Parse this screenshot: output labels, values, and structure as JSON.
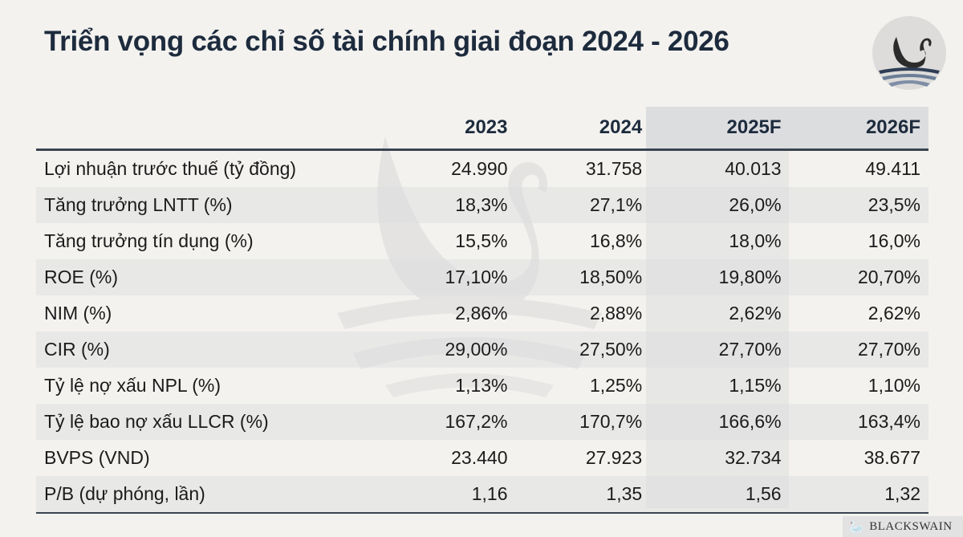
{
  "title": "Triển vọng các chỉ số tài chính giai đoạn 2024 - 2026",
  "table": {
    "headers": [
      "",
      "2023",
      "2024",
      "2025F",
      "2026F"
    ],
    "rows": [
      {
        "label": "Lợi nhuận trước thuế (tỷ đồng)",
        "values": [
          "24.990",
          "31.758",
          "40.013",
          "49.411"
        ]
      },
      {
        "label": "Tăng trưởng LNTT (%)",
        "values": [
          "18,3%",
          "27,1%",
          "26,0%",
          "23,5%"
        ]
      },
      {
        "label": "Tăng trưởng tín dụng (%)",
        "values": [
          "15,5%",
          "16,8%",
          "18,0%",
          "16,0%"
        ]
      },
      {
        "label": "ROE (%)",
        "values": [
          "17,10%",
          "18,50%",
          "19,80%",
          "20,70%"
        ]
      },
      {
        "label": "NIM (%)",
        "values": [
          "2,86%",
          "2,88%",
          "2,62%",
          "2,62%"
        ]
      },
      {
        "label": "CIR (%)",
        "values": [
          "29,00%",
          "27,50%",
          "27,70%",
          "27,70%"
        ]
      },
      {
        "label": "Tỷ lệ nợ xấu NPL (%)",
        "values": [
          "1,13%",
          "1,25%",
          "1,15%",
          "1,10%"
        ]
      },
      {
        "label": "Tỷ lệ bao nợ xấu LLCR (%)",
        "values": [
          "167,2%",
          "170,7%",
          "166,6%",
          "163,4%"
        ]
      },
      {
        "label": "BVPS (VND)",
        "values": [
          "23.440",
          "27.923",
          "32.734",
          "38.677"
        ]
      },
      {
        "label": "P/B (dự phóng, lần)",
        "values": [
          "1,16",
          "1,35",
          "1,56",
          "1,32"
        ]
      }
    ]
  },
  "brand": "BLACKSWAIN",
  "colors": {
    "title": "#1d2b3d",
    "background": "#f3f2ef",
    "rule": "#3a4450"
  }
}
